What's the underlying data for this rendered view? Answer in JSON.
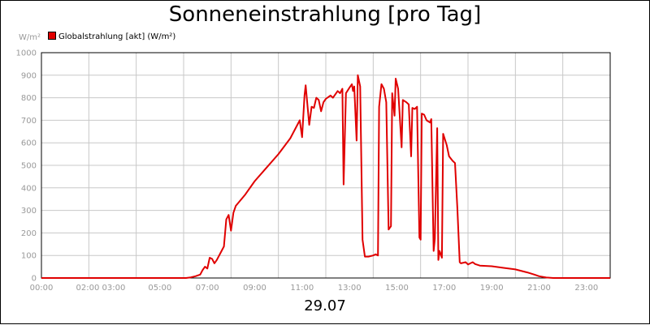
{
  "chart_data": {
    "type": "line",
    "title": "Sonneneinstrahlung [pro Tag]",
    "ylabel": "W/m²",
    "date_label": "29.07",
    "series": [
      {
        "name": "Globalstrahlung [akt] (W/m²)",
        "color": "#e00000",
        "points": [
          [
            0,
            0
          ],
          [
            6.1,
            0
          ],
          [
            6.3,
            3
          ],
          [
            6.5,
            8
          ],
          [
            6.7,
            15
          ],
          [
            6.8,
            35
          ],
          [
            6.9,
            50
          ],
          [
            7.0,
            42
          ],
          [
            7.1,
            90
          ],
          [
            7.2,
            85
          ],
          [
            7.3,
            65
          ],
          [
            7.4,
            80
          ],
          [
            7.6,
            120
          ],
          [
            7.7,
            140
          ],
          [
            7.8,
            260
          ],
          [
            7.9,
            280
          ],
          [
            8.0,
            210
          ],
          [
            8.1,
            290
          ],
          [
            8.2,
            320
          ],
          [
            8.6,
            370
          ],
          [
            9.0,
            430
          ],
          [
            9.5,
            490
          ],
          [
            10.0,
            550
          ],
          [
            10.5,
            620
          ],
          [
            10.8,
            680
          ],
          [
            10.9,
            700
          ],
          [
            11.0,
            625
          ],
          [
            11.1,
            810
          ],
          [
            11.15,
            855
          ],
          [
            11.3,
            680
          ],
          [
            11.4,
            760
          ],
          [
            11.5,
            755
          ],
          [
            11.6,
            800
          ],
          [
            11.7,
            790
          ],
          [
            11.8,
            740
          ],
          [
            11.9,
            780
          ],
          [
            12.0,
            795
          ],
          [
            12.2,
            810
          ],
          [
            12.3,
            800
          ],
          [
            12.5,
            830
          ],
          [
            12.6,
            820
          ],
          [
            12.7,
            840
          ],
          [
            12.75,
            415
          ],
          [
            12.85,
            820
          ],
          [
            13.0,
            845
          ],
          [
            13.1,
            860
          ],
          [
            13.15,
            830
          ],
          [
            13.2,
            850
          ],
          [
            13.3,
            610
          ],
          [
            13.35,
            900
          ],
          [
            13.45,
            850
          ],
          [
            13.55,
            170
          ],
          [
            13.65,
            95
          ],
          [
            13.8,
            95
          ],
          [
            14.0,
            100
          ],
          [
            14.1,
            105
          ],
          [
            14.2,
            100
          ],
          [
            14.25,
            760
          ],
          [
            14.35,
            860
          ],
          [
            14.45,
            840
          ],
          [
            14.55,
            780
          ],
          [
            14.65,
            215
          ],
          [
            14.75,
            230
          ],
          [
            14.8,
            820
          ],
          [
            14.9,
            720
          ],
          [
            14.95,
            885
          ],
          [
            15.05,
            840
          ],
          [
            15.2,
            580
          ],
          [
            15.25,
            790
          ],
          [
            15.4,
            780
          ],
          [
            15.5,
            770
          ],
          [
            15.6,
            540
          ],
          [
            15.65,
            755
          ],
          [
            15.75,
            750
          ],
          [
            15.85,
            760
          ],
          [
            15.95,
            180
          ],
          [
            16.0,
            170
          ],
          [
            16.05,
            730
          ],
          [
            16.15,
            725
          ],
          [
            16.25,
            700
          ],
          [
            16.4,
            690
          ],
          [
            16.45,
            705
          ],
          [
            16.55,
            120
          ],
          [
            16.6,
            175
          ],
          [
            16.7,
            665
          ],
          [
            16.75,
            80
          ],
          [
            16.8,
            120
          ],
          [
            16.9,
            90
          ],
          [
            16.95,
            640
          ],
          [
            17.1,
            590
          ],
          [
            17.2,
            540
          ],
          [
            17.35,
            520
          ],
          [
            17.45,
            510
          ],
          [
            17.55,
            310
          ],
          [
            17.65,
            70
          ],
          [
            17.7,
            65
          ],
          [
            17.9,
            70
          ],
          [
            18.0,
            60
          ],
          [
            18.1,
            65
          ],
          [
            18.2,
            70
          ],
          [
            18.3,
            62
          ],
          [
            18.5,
            55
          ],
          [
            19.0,
            52
          ],
          [
            19.5,
            45
          ],
          [
            20.0,
            38
          ],
          [
            20.5,
            25
          ],
          [
            20.8,
            15
          ],
          [
            21.0,
            8
          ],
          [
            21.3,
            2
          ],
          [
            21.6,
            0
          ],
          [
            24,
            0
          ]
        ]
      }
    ],
    "ylim": [
      0,
      1000
    ],
    "y_ticks": [
      0,
      100,
      200,
      300,
      400,
      500,
      600,
      700,
      800,
      900,
      1000
    ],
    "xlim": [
      0,
      24
    ],
    "x_ticks": [
      {
        "value": 0,
        "label": "00:00"
      },
      {
        "value": 2.5,
        "label": "02:00 03:00"
      },
      {
        "value": 5,
        "label": "05:00"
      },
      {
        "value": 7,
        "label": "07:00"
      },
      {
        "value": 9,
        "label": "09:00"
      },
      {
        "value": 11,
        "label": "11:00"
      },
      {
        "value": 13,
        "label": "13:00"
      },
      {
        "value": 15,
        "label": "15:00"
      },
      {
        "value": 17,
        "label": "17:00"
      },
      {
        "value": 19,
        "label": "19:00"
      },
      {
        "value": 21,
        "label": "21:00"
      },
      {
        "value": 23,
        "label": "23:00"
      }
    ],
    "x_gridlines": [
      2,
      4,
      6,
      8,
      10,
      12,
      14,
      16,
      18,
      20,
      22
    ],
    "grid": true,
    "legend_position": "top-left",
    "grid_color": "#c8c8c8",
    "line_color": "#e00000"
  }
}
